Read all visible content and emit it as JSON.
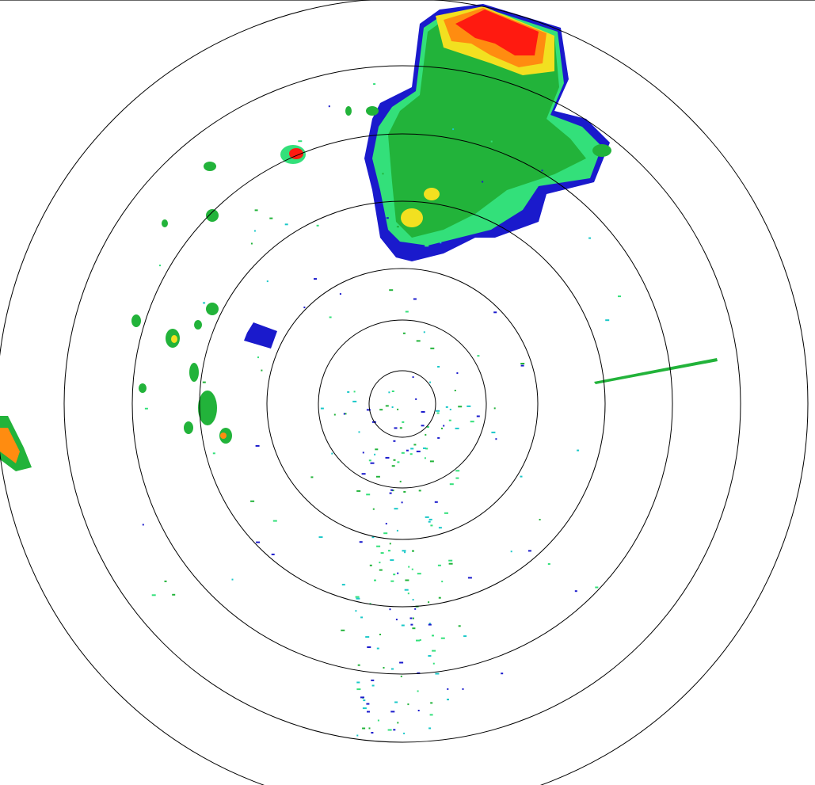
{
  "display": {
    "type": "radar-reflectivity-ppi",
    "range_rings": 7,
    "ring_color": "#000000",
    "background": "#ffffff"
  },
  "color_scale": {
    "weak": "#1a1acc",
    "light": "#19c8c8",
    "light_green": "#33e07a",
    "moderate": "#22b33a",
    "heavy": "#f2e020",
    "very_heavy": "#ff8c10",
    "intense": "#ff1a10"
  }
}
